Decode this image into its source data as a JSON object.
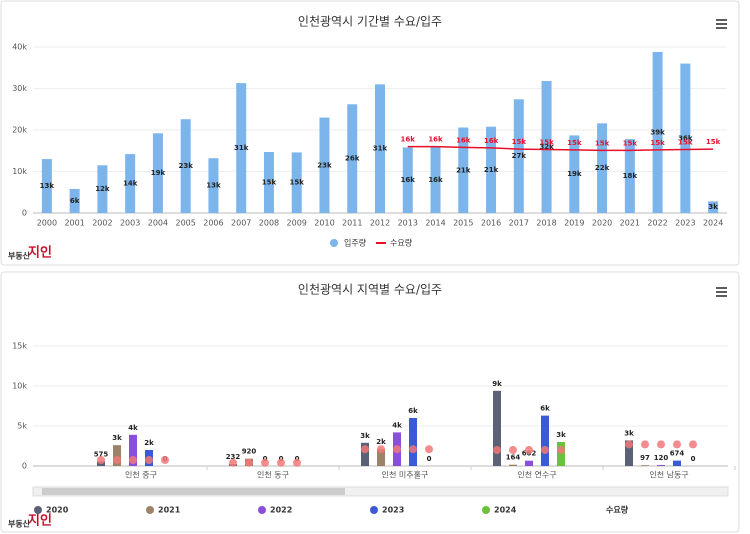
{
  "brand": {
    "prefix": "부동산",
    "name": "지인"
  },
  "chart_data": [
    {
      "type": "combo",
      "title": "인천광역시 기간별 수요/입주",
      "categories": [
        "2000",
        "2001",
        "2002",
        "2003",
        "2004",
        "2005",
        "2006",
        "2007",
        "2008",
        "2009",
        "2010",
        "2011",
        "2012",
        "2013",
        "2014",
        "2015",
        "2016",
        "2017",
        "2018",
        "2019",
        "2020",
        "2021",
        "2022",
        "2023",
        "2024"
      ],
      "series": [
        {
          "name": "입주량",
          "kind": "bar",
          "color": "#7cb5ec",
          "values": [
            13000,
            5800,
            11500,
            14200,
            19200,
            22600,
            13200,
            31300,
            14700,
            14600,
            23000,
            26200,
            31000,
            15800,
            15900,
            20600,
            20800,
            27400,
            31800,
            18700,
            21600,
            17800,
            38800,
            36000,
            2800
          ],
          "value_labels": [
            "13k",
            "6k",
            "12k",
            "14k",
            "19k",
            "23k",
            "13k",
            "31k",
            "15k",
            "15k",
            "23k",
            "26k",
            "31k",
            "16k",
            "16k",
            "21k",
            "21k",
            "27k",
            "32k",
            "19k",
            "22k",
            "18k",
            "39k",
            "36k",
            "3k"
          ]
        },
        {
          "name": "수요량",
          "kind": "line",
          "color": "#e8102a",
          "values": [
            null,
            null,
            null,
            null,
            null,
            null,
            null,
            null,
            null,
            null,
            null,
            null,
            null,
            16000,
            16000,
            15800,
            15700,
            15400,
            15300,
            15200,
            15100,
            15100,
            15200,
            15300,
            15400
          ],
          "value_labels": [
            null,
            null,
            null,
            null,
            null,
            null,
            null,
            null,
            null,
            null,
            null,
            null,
            null,
            "16k",
            "16k",
            "16k",
            "16k",
            "15k",
            "15k",
            "15k",
            "15k",
            "15k",
            "15k",
            "15k",
            "15k"
          ]
        }
      ],
      "ylim": [
        0,
        40000
      ],
      "yticks": [
        0,
        {
          "value": 10000,
          "label": "10k"
        },
        {
          "value": 20000,
          "label": "20k"
        },
        {
          "value": 30000,
          "label": "30k"
        },
        {
          "value": 40000,
          "label": "40k"
        }
      ],
      "grid": true,
      "legend": "bottom"
    },
    {
      "type": "bar",
      "title": "인천광역시 지역별 수요/입주",
      "categories": [
        "인천 중구",
        "인천 동구",
        "인천 미추홀구",
        "인천 연수구",
        "인천 남동구"
      ],
      "series": [
        {
          "name": "2020",
          "color": "#5b6176",
          "values": [
            575,
            232,
            2900,
            9400,
            3200
          ],
          "value_labels": [
            "575",
            "232",
            "3k",
            "9k",
            "3k"
          ]
        },
        {
          "name": "2021",
          "color": "#9c8266",
          "values": [
            2600,
            920,
            2100,
            164,
            97
          ],
          "value_labels": [
            "3k",
            "920",
            "2k",
            "164",
            "97"
          ]
        },
        {
          "name": "2022",
          "color": "#8a4fd8",
          "values": [
            3900,
            0,
            4200,
            662,
            120
          ],
          "value_labels": [
            "4k",
            "0",
            "4k",
            "662",
            "120"
          ]
        },
        {
          "name": "2023",
          "color": "#3b5bd6",
          "values": [
            2000,
            0,
            6000,
            6300,
            674
          ],
          "value_labels": [
            "2k",
            "0",
            "6k",
            "6k",
            "674"
          ]
        },
        {
          "name": "2024",
          "color": "#6cc03c",
          "values": [
            0,
            0,
            0,
            3000,
            0
          ],
          "value_labels": [
            "0",
            "0",
            "0",
            "3k",
            "0"
          ]
        }
      ],
      "demand": {
        "name": "수요량",
        "color": "#f27878",
        "values": [
          [
            750,
            750,
            750,
            750,
            750
          ],
          [
            400,
            400,
            400,
            400,
            400
          ],
          [
            2100,
            2100,
            2100,
            2100,
            2100
          ],
          [
            2000,
            2000,
            2000,
            2000,
            2000
          ],
          [
            2700,
            2700,
            2700,
            2700,
            2700
          ]
        ]
      },
      "ylim": [
        0,
        15000
      ],
      "yticks": [
        0,
        {
          "value": 5000,
          "label": "5k"
        },
        {
          "value": 10000,
          "label": "10k"
        },
        {
          "value": 15000,
          "label": "15k"
        }
      ],
      "grid": true,
      "legend": "bottom"
    }
  ]
}
